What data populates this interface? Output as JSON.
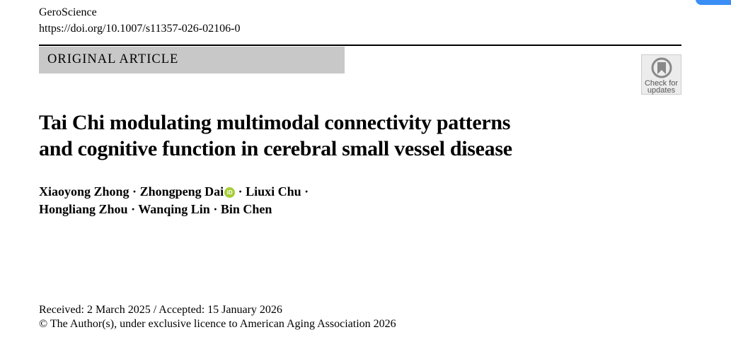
{
  "header": {
    "journal": "GeroScience",
    "doi": "https://doi.org/10.1007/s11357-026-02106-0",
    "article_type": "ORIGINAL ARTICLE",
    "check_for_updates": {
      "line1": "Check for",
      "line2": "updates"
    }
  },
  "article": {
    "title_line1": "Tai Chi modulating multimodal connectivity patterns",
    "title_line2": "and cognitive function in cerebral small vessel disease",
    "authors": [
      "Xiaoyong Zhong",
      "Zhongpeng Dai",
      "Liuxi Chu",
      "Hongliang Zhou",
      "Wanqing Lin",
      "Bin Chen"
    ],
    "separator": " · ",
    "orcid_icon": "orcid-icon",
    "received": "Received: 2 March 2025 / Accepted: 15 January 2026",
    "copyright": "© The Author(s), under exclusive licence to American Aging Association 2026"
  },
  "colors": {
    "type_box": "#c8c8c8",
    "orcid": "#a6ce39",
    "corner_button": "#3a8ef5"
  }
}
